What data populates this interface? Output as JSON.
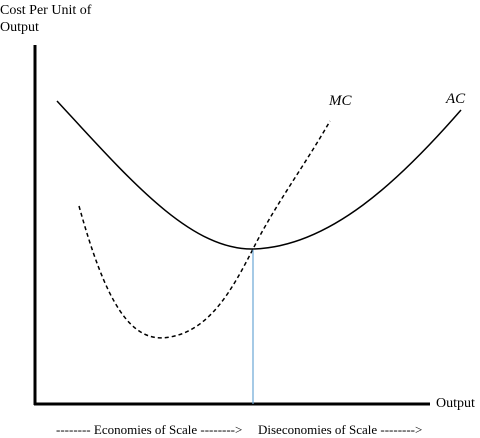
{
  "axes": {
    "y_label_line1": "Cost Per Unit of",
    "y_label_line2": "Output",
    "x_label": "Output"
  },
  "curves": {
    "mc_label": "MC",
    "ac_label": "AC"
  },
  "bottom": {
    "economies": "-------- Economies of Scale -------->",
    "diseconomies": "Diseconomies of Scale -------->"
  },
  "colors": {
    "axis": "#000000",
    "curve": "#000000",
    "min_line": "#6aa6d6"
  }
}
